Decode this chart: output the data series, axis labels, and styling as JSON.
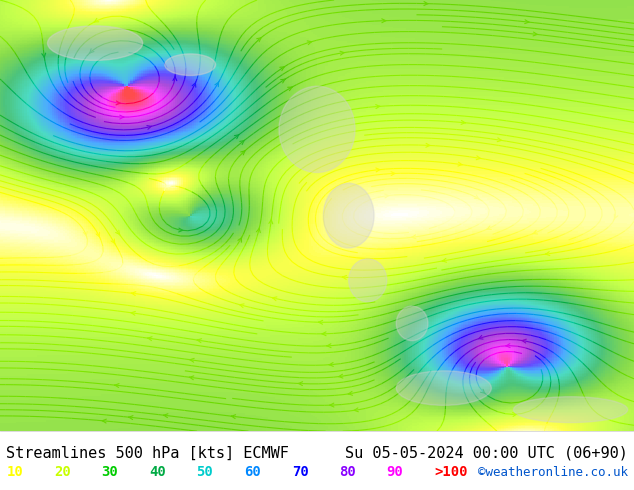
{
  "title_left": "Streamlines 500 hPa [kts] ECMWF",
  "title_right": "Su 05-05-2024 00:00 UTC (06+90)",
  "copyright": "©weatheronline.co.uk",
  "legend_values": [
    "10",
    "20",
    "30",
    "40",
    "50",
    "60",
    "70",
    "80",
    "90",
    ">100"
  ],
  "legend_colors": [
    "#ffff00",
    "#c8ff00",
    "#00cc00",
    "#00aa44",
    "#00cccc",
    "#0088ff",
    "#0000ff",
    "#8800ff",
    "#ff00ff",
    "#ff0000"
  ],
  "bg_color": "#ffffff",
  "map_bg": "#f0f0f0",
  "title_fontsize": 11,
  "legend_fontsize": 10,
  "copyright_color": "#0055cc",
  "title_color": "#000000"
}
